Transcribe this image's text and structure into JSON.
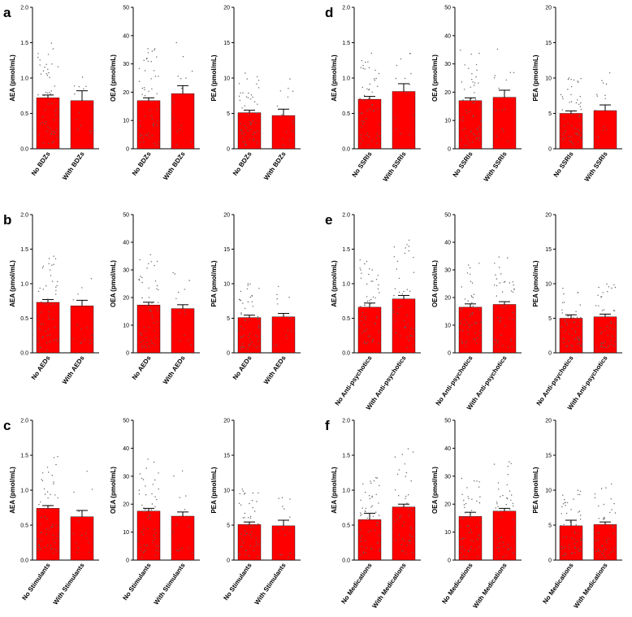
{
  "panels": [
    {
      "letter": "a"
    },
    {
      "letter": "b"
    },
    {
      "letter": "c"
    },
    {
      "letter": "d"
    },
    {
      "letter": "e"
    },
    {
      "letter": "f"
    }
  ],
  "style": {
    "bar_color": "#ff0000",
    "dot_color": "#606060",
    "axis_color": "#000000"
  },
  "chart_data": [
    {
      "panel": "a",
      "type": "bar",
      "ylabel": "AEA (pmol/mL)",
      "ylim": [
        0,
        2.0
      ],
      "yticks": [
        "0.0",
        "0.5",
        "1.0",
        "1.5",
        "2.0"
      ],
      "categories": [
        "No BDZs",
        "With BDZs"
      ],
      "values": [
        0.72,
        0.68
      ],
      "sem": [
        0.04,
        0.14
      ]
    },
    {
      "panel": "a",
      "type": "bar",
      "ylabel": "OEA (pmol/mL)",
      "ylim": [
        0,
        50
      ],
      "yticks": [
        "0",
        "10",
        "20",
        "30",
        "40",
        "50"
      ],
      "categories": [
        "No BDZs",
        "With BDZs"
      ],
      "values": [
        17,
        19.5
      ],
      "sem": [
        1.0,
        2.8
      ]
    },
    {
      "panel": "a",
      "type": "bar",
      "ylabel": "PEA (pmol/mL)",
      "ylim": [
        0,
        20
      ],
      "yticks": [
        "0",
        "5",
        "10",
        "15",
        "20"
      ],
      "categories": [
        "No BDZs",
        "With BDZs"
      ],
      "values": [
        5.1,
        4.7
      ],
      "sem": [
        0.35,
        0.9
      ]
    },
    {
      "panel": "b",
      "type": "bar",
      "ylabel": "AEA (pmol/mL)",
      "ylim": [
        0,
        2.0
      ],
      "yticks": [
        "0.0",
        "0.5",
        "1.0",
        "1.5",
        "2.0"
      ],
      "categories": [
        "No AEDs",
        "With AEDs"
      ],
      "values": [
        0.73,
        0.68
      ],
      "sem": [
        0.04,
        0.08
      ]
    },
    {
      "panel": "b",
      "type": "bar",
      "ylabel": "OEA (pmol/mL)",
      "ylim": [
        0,
        50
      ],
      "yticks": [
        "0",
        "10",
        "20",
        "30",
        "40",
        "50"
      ],
      "categories": [
        "No AEDs",
        "With AEDs"
      ],
      "values": [
        17.3,
        16
      ],
      "sem": [
        1.0,
        1.4
      ]
    },
    {
      "panel": "b",
      "type": "bar",
      "ylabel": "PEA (pmol/mL)",
      "ylim": [
        0,
        20
      ],
      "yticks": [
        "0",
        "5",
        "10",
        "15",
        "20"
      ],
      "categories": [
        "No AEDs",
        "With AEDs"
      ],
      "values": [
        5.1,
        5.2
      ],
      "sem": [
        0.35,
        0.5
      ]
    },
    {
      "panel": "c",
      "type": "bar",
      "ylabel": "AEA (pmol/mL)",
      "ylim": [
        0,
        2.0
      ],
      "yticks": [
        "0.0",
        "0.5",
        "1.0",
        "1.5",
        "2.0"
      ],
      "categories": [
        "No Stimulants",
        "With Stimulants"
      ],
      "values": [
        0.74,
        0.62
      ],
      "sem": [
        0.04,
        0.09
      ]
    },
    {
      "panel": "c",
      "type": "bar",
      "ylabel": "OEA (pmol/mL)",
      "ylim": [
        0,
        50
      ],
      "yticks": [
        "0",
        "10",
        "20",
        "30",
        "40",
        "50"
      ],
      "categories": [
        "No Stimulants",
        "With Stimulants"
      ],
      "values": [
        17.5,
        15.7
      ],
      "sem": [
        1.0,
        1.5
      ]
    },
    {
      "panel": "c",
      "type": "bar",
      "ylabel": "PEA (pmol/mL)",
      "ylim": [
        0,
        20
      ],
      "yticks": [
        "0",
        "5",
        "10",
        "15",
        "20"
      ],
      "categories": [
        "No Stimulants",
        "With Stimulants"
      ],
      "values": [
        5.1,
        4.9
      ],
      "sem": [
        0.35,
        0.8
      ]
    },
    {
      "panel": "d",
      "type": "bar",
      "ylabel": "AEA (pmol/mL)",
      "ylim": [
        0,
        2.0
      ],
      "yticks": [
        "0.0",
        "0.5",
        "1.0",
        "1.5",
        "2.0"
      ],
      "categories": [
        "No SSRIs",
        "With SSRIs"
      ],
      "values": [
        0.7,
        0.81
      ],
      "sem": [
        0.04,
        0.11
      ]
    },
    {
      "panel": "d",
      "type": "bar",
      "ylabel": "OEA (pmol/mL)",
      "ylim": [
        0,
        50
      ],
      "yticks": [
        "0",
        "10",
        "20",
        "30",
        "40",
        "50"
      ],
      "categories": [
        "No SSRIs",
        "With SSRIs"
      ],
      "values": [
        17,
        18.2
      ],
      "sem": [
        1.0,
        2.5
      ]
    },
    {
      "panel": "d",
      "type": "bar",
      "ylabel": "PEA (pmol/mL)",
      "ylim": [
        0,
        20
      ],
      "yticks": [
        "0",
        "5",
        "10",
        "15",
        "20"
      ],
      "categories": [
        "No SSRIs",
        "With SSRIs"
      ],
      "values": [
        5.0,
        5.4
      ],
      "sem": [
        0.35,
        0.8
      ]
    },
    {
      "panel": "e",
      "type": "bar",
      "ylabel": "AEA (pmol/mL)",
      "ylim": [
        0,
        2.0
      ],
      "yticks": [
        "0.0",
        "0.5",
        "1.0",
        "1.5",
        "2.0"
      ],
      "categories": [
        "No Anti-psychotics",
        "With Anti-psychotics"
      ],
      "values": [
        0.66,
        0.78
      ],
      "sem": [
        0.06,
        0.05
      ]
    },
    {
      "panel": "e",
      "type": "bar",
      "ylabel": "OEA (pmol/mL)",
      "ylim": [
        0,
        50
      ],
      "yticks": [
        "0",
        "10",
        "20",
        "30",
        "40",
        "50"
      ],
      "categories": [
        "No Anti-psychotics",
        "With Anti-psychotics"
      ],
      "values": [
        16.5,
        17.5
      ],
      "sem": [
        1.2,
        1.0
      ]
    },
    {
      "panel": "e",
      "type": "bar",
      "ylabel": "PEA (pmol/mL)",
      "ylim": [
        0,
        20
      ],
      "yticks": [
        "0",
        "5",
        "10",
        "15",
        "20"
      ],
      "categories": [
        "No Anti-psychotics",
        "With Anti-psychotics"
      ],
      "values": [
        5.0,
        5.2
      ],
      "sem": [
        0.5,
        0.4
      ]
    },
    {
      "panel": "f",
      "type": "bar",
      "ylabel": "AEA (pmol/mL)",
      "ylim": [
        0,
        2.0
      ],
      "yticks": [
        "0.0",
        "0.5",
        "1.0",
        "1.5",
        "2.0"
      ],
      "categories": [
        "No Medications",
        "With Medications"
      ],
      "values": [
        0.58,
        0.76
      ],
      "sem": [
        0.09,
        0.04
      ]
    },
    {
      "panel": "f",
      "type": "bar",
      "ylabel": "OEA (pmol/mL)",
      "ylim": [
        0,
        50
      ],
      "yticks": [
        "0",
        "10",
        "20",
        "30",
        "40",
        "50"
      ],
      "categories": [
        "No Medications",
        "With Medications"
      ],
      "values": [
        15.6,
        17.5
      ],
      "sem": [
        1.5,
        1.0
      ]
    },
    {
      "panel": "f",
      "type": "bar",
      "ylabel": "PEA (pmol/mL)",
      "ylim": [
        0,
        20
      ],
      "yticks": [
        "0",
        "5",
        "10",
        "15",
        "20"
      ],
      "categories": [
        "No Medications",
        "With Medications"
      ],
      "values": [
        4.9,
        5.1
      ],
      "sem": [
        0.8,
        0.35
      ]
    }
  ]
}
